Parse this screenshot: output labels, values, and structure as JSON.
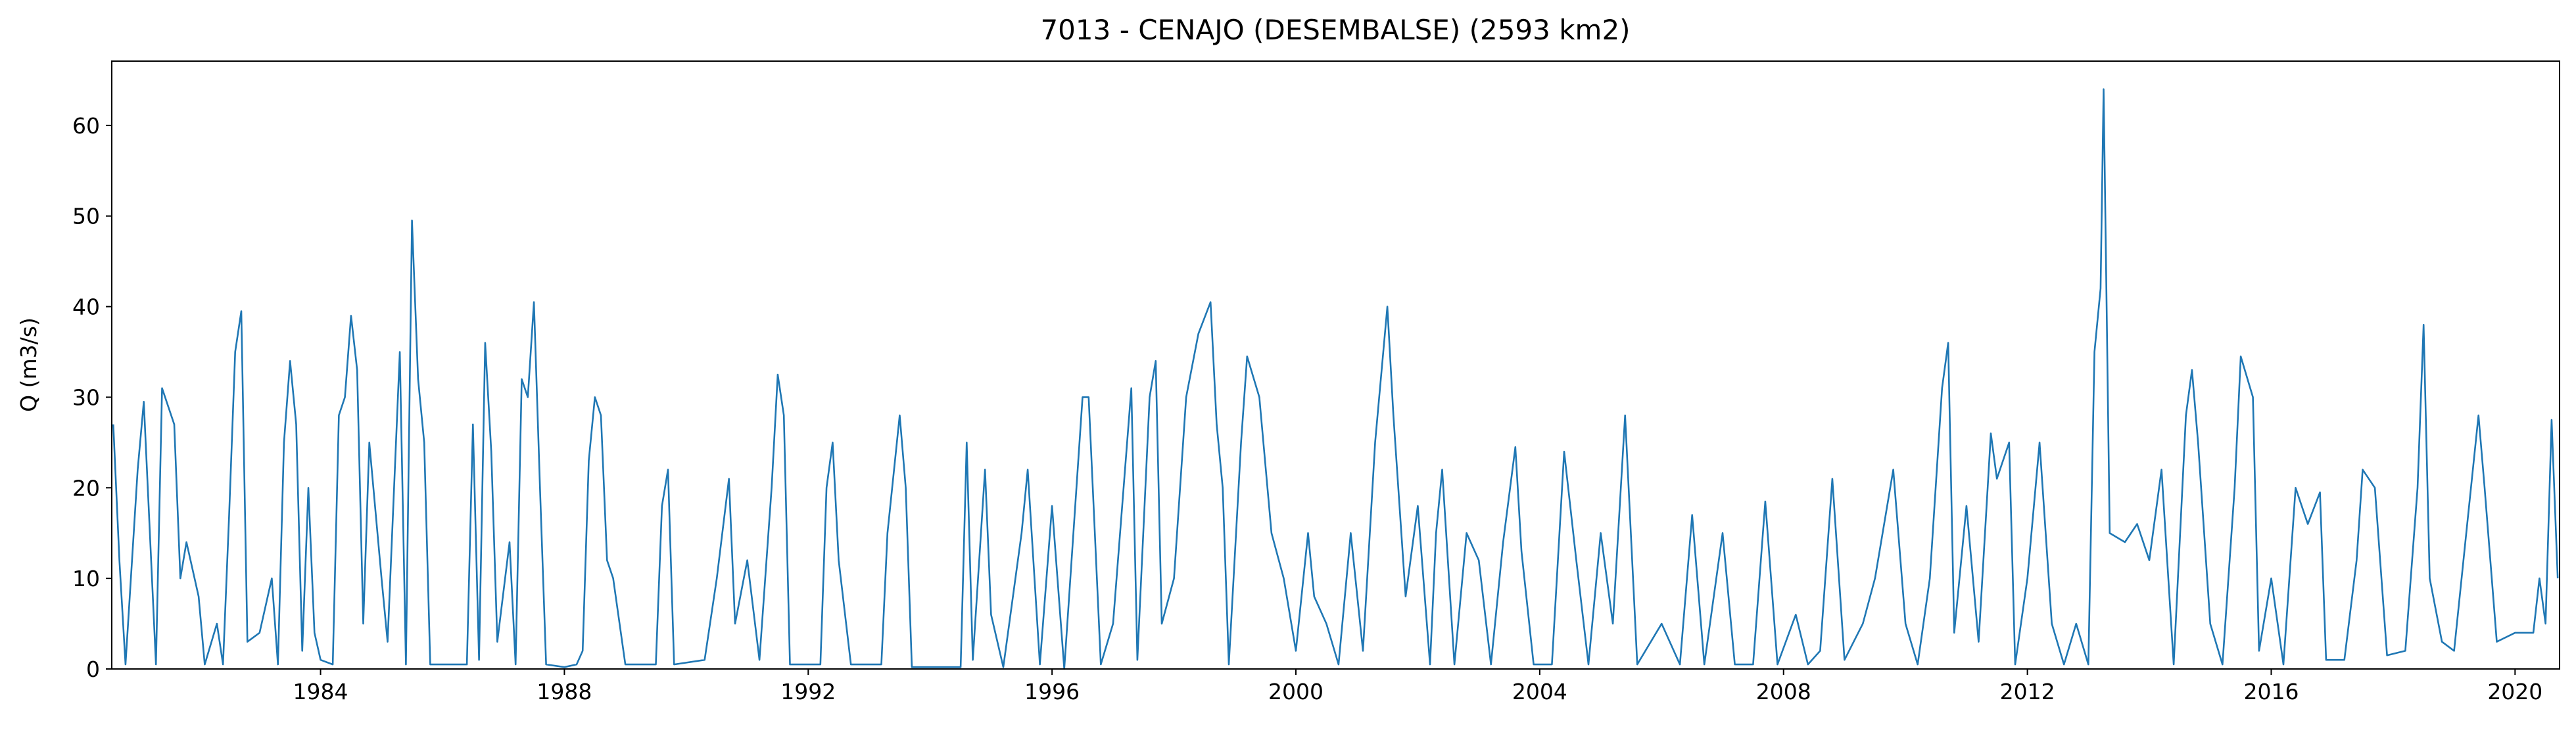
{
  "chart_data": {
    "type": "line",
    "title": "7013 - CENAJO (DESEMBALSE) (2593 km2)",
    "ylabel": "Q (m3/s)",
    "color": "#1f77b4",
    "x": [
      1980.6,
      1980.7,
      1980.8,
      1981.0,
      1981.1,
      1981.3,
      1981.4,
      1981.6,
      1981.7,
      1981.8,
      1982.0,
      1982.1,
      1982.3,
      1982.4,
      1982.5,
      1982.6,
      1982.7,
      1982.8,
      1983.0,
      1983.2,
      1983.3,
      1983.4,
      1983.5,
      1983.6,
      1983.7,
      1983.8,
      1983.9,
      1984.0,
      1984.2,
      1984.3,
      1984.4,
      1984.5,
      1984.6,
      1984.7,
      1984.8,
      1985.0,
      1985.1,
      1985.3,
      1985.4,
      1985.5,
      1985.6,
      1985.7,
      1985.8,
      1986.0,
      1986.4,
      1986.5,
      1986.6,
      1986.7,
      1986.8,
      1986.9,
      1987.1,
      1987.2,
      1987.3,
      1987.4,
      1987.5,
      1987.6,
      1987.7,
      1988.0,
      1988.2,
      1988.3,
      1988.4,
      1988.5,
      1988.6,
      1988.7,
      1988.8,
      1989.0,
      1989.5,
      1989.6,
      1989.7,
      1989.8,
      1990.3,
      1990.5,
      1990.7,
      1990.8,
      1991.0,
      1991.2,
      1991.4,
      1991.5,
      1991.6,
      1991.7,
      1992.2,
      1992.3,
      1992.4,
      1992.5,
      1992.7,
      1993.2,
      1993.3,
      1993.5,
      1993.6,
      1993.7,
      1994.5,
      1994.6,
      1994.7,
      1994.9,
      1995.0,
      1995.2,
      1995.5,
      1995.6,
      1995.8,
      1996.0,
      1996.2,
      1996.5,
      1996.6,
      1996.8,
      1997.0,
      1997.3,
      1997.4,
      1997.6,
      1997.7,
      1997.8,
      1998.0,
      1998.2,
      1998.4,
      1998.6,
      1998.7,
      1998.8,
      1998.9,
      1999.1,
      1999.2,
      1999.4,
      1999.6,
      1999.8,
      2000.0,
      2000.2,
      2000.3,
      2000.5,
      2000.7,
      2000.9,
      2001.1,
      2001.3,
      2001.5,
      2001.6,
      2001.8,
      2002.0,
      2002.2,
      2002.3,
      2002.4,
      2002.6,
      2002.8,
      2003.0,
      2003.2,
      2003.4,
      2003.6,
      2003.7,
      2003.9,
      2004.2,
      2004.4,
      2004.6,
      2004.8,
      2005.0,
      2005.2,
      2005.4,
      2005.6,
      2006.0,
      2006.3,
      2006.5,
      2006.7,
      2007.0,
      2007.2,
      2007.5,
      2007.7,
      2007.9,
      2008.2,
      2008.4,
      2008.6,
      2008.8,
      2009.0,
      2009.3,
      2009.5,
      2009.8,
      2010.0,
      2010.2,
      2010.4,
      2010.6,
      2010.7,
      2010.8,
      2011.0,
      2011.2,
      2011.4,
      2011.5,
      2011.7,
      2011.8,
      2012.0,
      2012.2,
      2012.4,
      2012.6,
      2012.8,
      2013.0,
      2013.1,
      2013.2,
      2013.25,
      2013.3,
      2013.35,
      2013.6,
      2013.8,
      2014.0,
      2014.2,
      2014.4,
      2014.6,
      2014.7,
      2014.8,
      2015.0,
      2015.2,
      2015.4,
      2015.5,
      2015.7,
      2015.8,
      2016.0,
      2016.2,
      2016.4,
      2016.6,
      2016.8,
      2016.9,
      2017.2,
      2017.4,
      2017.5,
      2017.7,
      2017.9,
      2018.2,
      2018.4,
      2018.5,
      2018.6,
      2018.8,
      2019.0,
      2019.2,
      2019.4,
      2019.5,
      2019.7,
      2020.0,
      2020.3,
      2020.4,
      2020.5,
      2020.6,
      2020.7
    ],
    "values": [
      27,
      12,
      0.5,
      22,
      29.5,
      0.5,
      31,
      27,
      10,
      14,
      8,
      0.5,
      5,
      0.5,
      17,
      35,
      39.5,
      3,
      4,
      10,
      0.5,
      25,
      34,
      27,
      2,
      20,
      4,
      1,
      0.5,
      28,
      30,
      39,
      33,
      5,
      25,
      10,
      3,
      35,
      0.5,
      49.5,
      32,
      25,
      0.5,
      0.5,
      0.5,
      27,
      1,
      36,
      24,
      3,
      14,
      0.5,
      32,
      30,
      40.5,
      20,
      0.5,
      0.2,
      0.5,
      2,
      23,
      30,
      28,
      12,
      10,
      0.5,
      0.5,
      18,
      22,
      0.5,
      1,
      10,
      21,
      5,
      12,
      1,
      20,
      32.5,
      28,
      0.5,
      0.5,
      20,
      25,
      12,
      0.5,
      0.5,
      15,
      28,
      20,
      0.2,
      0.2,
      25,
      1,
      22,
      6,
      0.2,
      15,
      22,
      0.5,
      18,
      0,
      30,
      30,
      0.5,
      5,
      31,
      1,
      30,
      34,
      5,
      10,
      30,
      37,
      40.5,
      27,
      20,
      0.5,
      25,
      34.5,
      30,
      15,
      10,
      2,
      15,
      8,
      5,
      0.5,
      15,
      2,
      25,
      40,
      28,
      8,
      18,
      0.5,
      15,
      22,
      0.5,
      15,
      12,
      0.5,
      14,
      24.5,
      13,
      0.5,
      0.5,
      24,
      12,
      0.5,
      15,
      5,
      28,
      0.5,
      5,
      0.5,
      17,
      0.5,
      15,
      0.5,
      0.5,
      18.5,
      0.5,
      6,
      0.5,
      2,
      21,
      1,
      5,
      10,
      22,
      5,
      0.5,
      10,
      31,
      36,
      4,
      18,
      3,
      26,
      21,
      25,
      0.5,
      10,
      25,
      5,
      0.5,
      5,
      0.5,
      35,
      42,
      64,
      40,
      15,
      14,
      16,
      12,
      22,
      0.5,
      28,
      33,
      25,
      5,
      0.5,
      20,
      34.5,
      30,
      2,
      10,
      0.5,
      20,
      16,
      19.5,
      1,
      1,
      12,
      22,
      20,
      1.5,
      2,
      20,
      38,
      10,
      3,
      2,
      15,
      28,
      20,
      3,
      4,
      4,
      10,
      5,
      27.5,
      10
    ],
    "xlim": [
      1980.575,
      2020.73
    ],
    "xticks": [
      1984,
      1988,
      1992,
      1996,
      2000,
      2004,
      2008,
      2012,
      2016,
      2020
    ],
    "ylim": [
      0,
      67.1
    ],
    "yticks": [
      0,
      10,
      20,
      30,
      40,
      50,
      60
    ]
  }
}
